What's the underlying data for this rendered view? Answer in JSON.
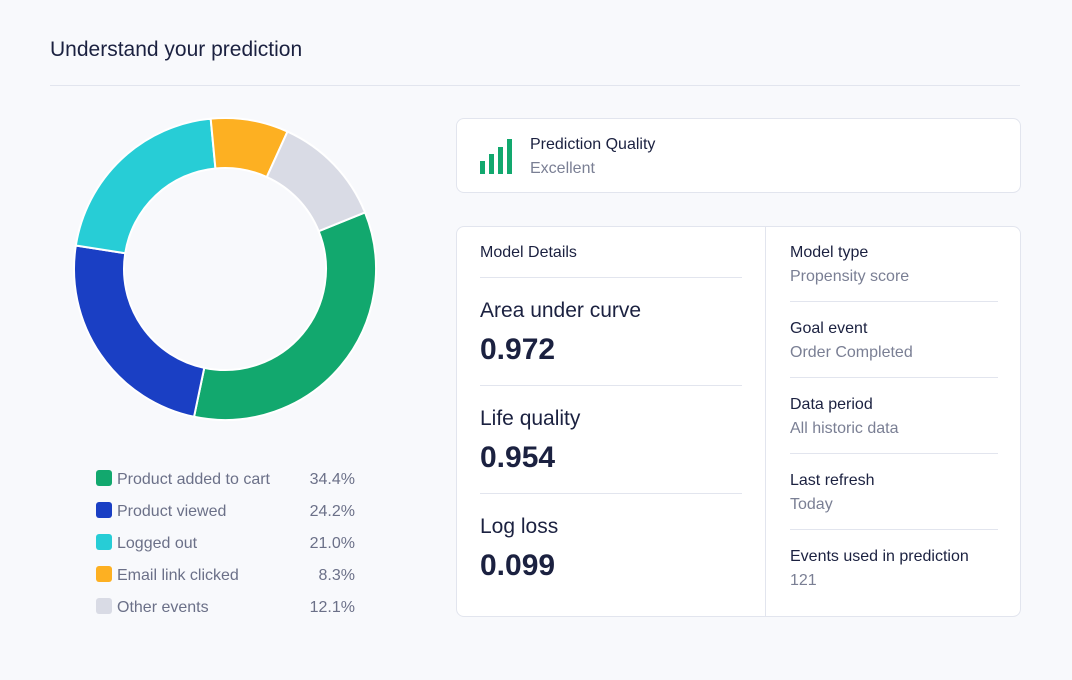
{
  "header": {
    "title": "Understand your prediction"
  },
  "chart_data": {
    "type": "pie",
    "categories": [
      "Product added to cart",
      "Product viewed",
      "Logged out",
      "Email link clicked",
      "Other events"
    ],
    "values": [
      34.4,
      24.2,
      21.0,
      8.3,
      12.1
    ],
    "value_labels": [
      "34.4%",
      "24.2%",
      "21.0%",
      "8.3%",
      "12.1%"
    ],
    "colors": [
      "#12a86e",
      "#1a3fc4",
      "#27cdd6",
      "#fdb022",
      "#d9dbe5"
    ]
  },
  "prediction_quality": {
    "title": "Prediction Quality",
    "value": "Excellent"
  },
  "model_details": {
    "title": "Model Details",
    "metrics": [
      {
        "label": "Area under curve",
        "value": "0.972"
      },
      {
        "label": "Life quality",
        "value": "0.954"
      },
      {
        "label": "Log loss",
        "value": "0.099"
      }
    ]
  },
  "model_info": [
    {
      "label": "Model type",
      "value": "Propensity score"
    },
    {
      "label": "Goal event",
      "value": "Order Completed"
    },
    {
      "label": "Data period",
      "value": "All historic data"
    },
    {
      "label": "Last refresh",
      "value": "Today"
    },
    {
      "label": "Events used in prediction",
      "value": "121"
    }
  ]
}
